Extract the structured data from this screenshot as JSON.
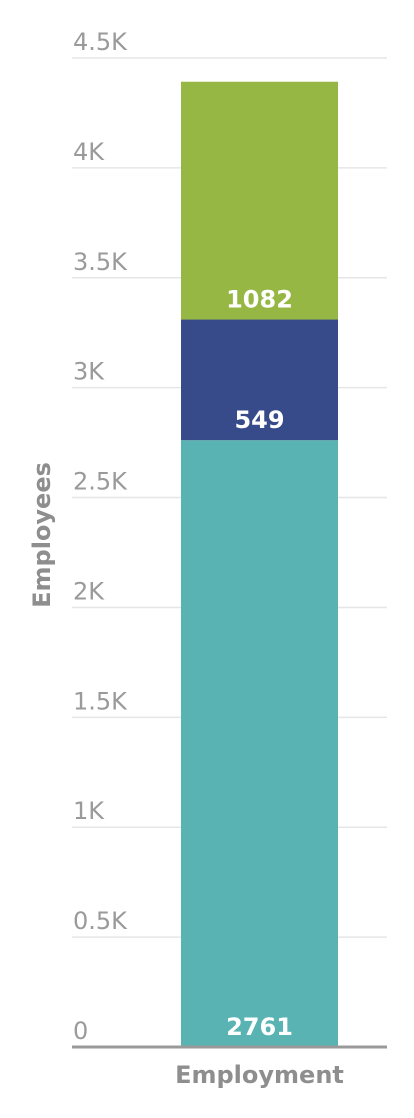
{
  "chart_data": {
    "type": "bar",
    "stacked": true,
    "categories": [
      "Employment"
    ],
    "series": [
      {
        "values": [
          2761
        ],
        "color": "#5ab3b3"
      },
      {
        "values": [
          549
        ],
        "color": "#374a8a"
      },
      {
        "values": [
          1082
        ],
        "color": "#97b744"
      }
    ],
    "ylabel": "Employees",
    "xlabel": "",
    "ylim": [
      0,
      4500
    ],
    "y_ticks": [
      0,
      500,
      1000,
      1500,
      2000,
      2500,
      3000,
      3500,
      4000,
      4500
    ],
    "y_tick_labels": [
      "0",
      "0.5K",
      "1K",
      "1.5K",
      "2K",
      "2.5K",
      "3K",
      "3.5K",
      "4K",
      "4.5K"
    ],
    "grid": true
  }
}
